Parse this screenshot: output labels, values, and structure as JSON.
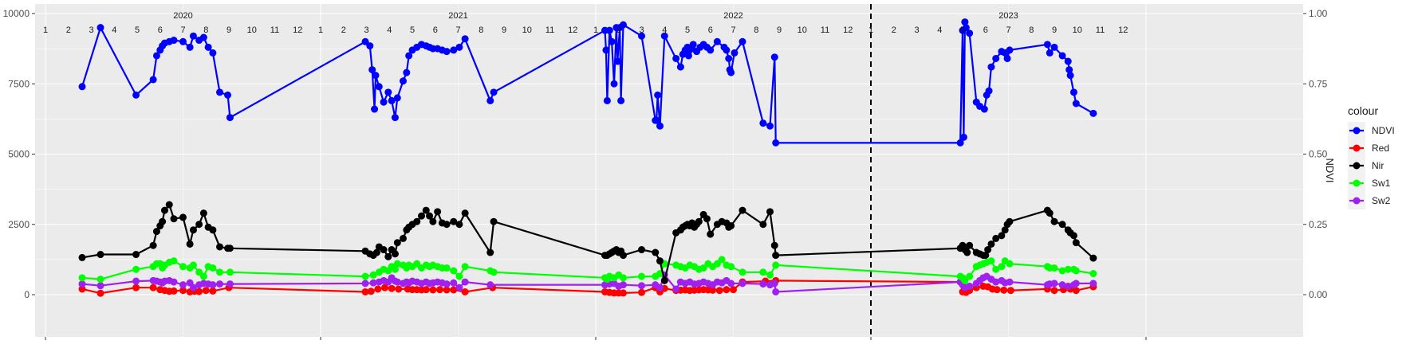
{
  "chart_data": {
    "type": "line",
    "x_start_year": 2020,
    "xlim": [
      0,
      48
    ],
    "ylim_left": [
      0,
      10000
    ],
    "ylim_right": [
      0,
      1
    ],
    "yticks_left": [
      0,
      2500,
      5000,
      7500,
      10000
    ],
    "yticks_right": [
      "0.00",
      "0.25",
      "0.50",
      "0.75",
      "1.00"
    ],
    "ylabel_right": "NDVI",
    "year_labels": [
      "2020",
      "2021",
      "2022",
      "2023"
    ],
    "month_labels": [
      "1",
      "2",
      "3",
      "4",
      "5",
      "6",
      "7",
      "8",
      "9",
      "10",
      "11",
      "12"
    ],
    "vline_x": 36,
    "grid": true,
    "legend_position": "right",
    "legend_title": "colour",
    "series": [
      {
        "name": "NDVI",
        "color": "#0000ff",
        "x": [
          1.6,
          2.4,
          3.95,
          4.7,
          4.85,
          5.0,
          5.1,
          5.2,
          5.4,
          5.6,
          6.0,
          6.3,
          6.45,
          6.7,
          6.9,
          7.1,
          7.3,
          7.6,
          7.95,
          8.05,
          13.95,
          14.15,
          14.25,
          14.35,
          14.4,
          14.55,
          14.75,
          14.95,
          15.1,
          15.25,
          15.35,
          15.6,
          15.75,
          15.85,
          16.0,
          16.2,
          16.4,
          16.6,
          16.75,
          16.9,
          17.1,
          17.3,
          17.5,
          17.8,
          18.05,
          18.3,
          19.4,
          19.55,
          24.4,
          24.45,
          24.5,
          24.6,
          24.7,
          24.8,
          24.9,
          24.95,
          25.05,
          25.1,
          25.2,
          26.0,
          26.6,
          26.65,
          26.7,
          26.8,
          27.0,
          27.5,
          27.7,
          27.8,
          27.9,
          28.0,
          28.05,
          28.1,
          28.15,
          28.25,
          28.4,
          28.55,
          28.7,
          28.85,
          29.0,
          29.3,
          29.6,
          29.7,
          29.8,
          29.85,
          29.9,
          30.05,
          30.4,
          31.3,
          31.6,
          31.8,
          31.85,
          39.9,
          40.0,
          40.05,
          40.1,
          40.15,
          40.3,
          40.6,
          40.75,
          40.95,
          41.05,
          41.15,
          41.25,
          41.45,
          41.7,
          41.85,
          41.95,
          42.05,
          43.7,
          43.8,
          44.0,
          44.35,
          44.6,
          44.65,
          44.7,
          44.85,
          44.95,
          45.7
        ],
        "y": [
          0.74,
          0.95,
          0.71,
          0.765,
          0.85,
          0.87,
          0.885,
          0.895,
          0.9,
          0.905,
          0.9,
          0.88,
          0.92,
          0.905,
          0.915,
          0.88,
          0.86,
          0.72,
          0.71,
          0.63,
          0.9,
          0.885,
          0.8,
          0.66,
          0.78,
          0.74,
          0.685,
          0.72,
          0.69,
          0.63,
          0.7,
          0.76,
          0.79,
          0.85,
          0.87,
          0.88,
          0.89,
          0.885,
          0.88,
          0.875,
          0.875,
          0.87,
          0.865,
          0.87,
          0.88,
          0.91,
          0.69,
          0.72,
          0.94,
          0.87,
          0.69,
          0.94,
          0.9,
          0.75,
          0.95,
          0.83,
          0.95,
          0.69,
          0.96,
          0.92,
          0.62,
          0.62,
          0.71,
          0.6,
          0.92,
          0.84,
          0.81,
          0.855,
          0.87,
          0.88,
          0.85,
          0.87,
          0.875,
          0.89,
          0.865,
          0.88,
          0.89,
          0.88,
          0.87,
          0.9,
          0.88,
          0.87,
          0.84,
          0.8,
          0.79,
          0.86,
          0.9,
          0.61,
          0.6,
          0.845,
          0.54,
          0.54,
          0.94,
          0.56,
          0.97,
          0.95,
          0.93,
          0.685,
          0.67,
          0.66,
          0.71,
          0.725,
          0.81,
          0.84,
          0.865,
          0.86,
          0.84,
          0.87,
          0.89,
          0.86,
          0.88,
          0.85,
          0.83,
          0.8,
          0.78,
          0.72,
          0.68,
          0.645
        ]
      },
      {
        "name": "Red",
        "color": "#ff0000",
        "x": [
          1.6,
          2.4,
          3.95,
          4.7,
          5.0,
          5.2,
          5.4,
          5.6,
          6.0,
          6.3,
          6.5,
          6.7,
          7.0,
          7.3,
          8.0,
          13.95,
          14.2,
          14.5,
          14.8,
          15.1,
          15.4,
          15.8,
          16.0,
          16.2,
          16.4,
          16.6,
          16.9,
          17.2,
          17.5,
          17.8,
          18.3,
          19.5,
          24.4,
          24.6,
          24.8,
          25.0,
          25.2,
          26.0,
          26.6,
          26.8,
          27.0,
          27.5,
          27.7,
          27.9,
          28.1,
          28.3,
          28.5,
          28.7,
          28.9,
          29.1,
          29.4,
          29.7,
          30.0,
          30.4,
          31.4,
          31.85,
          39.9,
          40.0,
          40.15,
          40.3,
          40.6,
          40.9,
          41.1,
          41.3,
          41.5,
          41.8,
          42.1,
          43.7,
          44.0,
          44.4,
          44.7,
          44.95,
          45.7
        ],
        "y": [
          200,
          50,
          250,
          250,
          180,
          150,
          120,
          130,
          150,
          100,
          120,
          110,
          150,
          130,
          250,
          100,
          120,
          200,
          250,
          220,
          200,
          200,
          180,
          180,
          170,
          180,
          170,
          180,
          170,
          170,
          100,
          250,
          100,
          80,
          60,
          60,
          60,
          80,
          250,
          100,
          220,
          150,
          160,
          170,
          150,
          160,
          170,
          180,
          170,
          160,
          150,
          180,
          180,
          450,
          480,
          500,
          450,
          100,
          80,
          150,
          250,
          300,
          280,
          200,
          180,
          160,
          150,
          200,
          150,
          180,
          200,
          150,
          280
        ]
      },
      {
        "name": "Nir",
        "color": "#000000",
        "x": [
          1.6,
          2.4,
          3.95,
          4.7,
          4.85,
          5.0,
          5.1,
          5.2,
          5.4,
          5.6,
          6.0,
          6.3,
          6.45,
          6.7,
          6.9,
          7.1,
          7.3,
          7.6,
          7.95,
          8.05,
          13.95,
          14.15,
          14.3,
          14.45,
          14.55,
          14.75,
          14.95,
          15.1,
          15.25,
          15.35,
          15.6,
          15.75,
          15.85,
          16.0,
          16.2,
          16.4,
          16.6,
          16.75,
          16.9,
          17.1,
          17.3,
          17.5,
          17.8,
          18.05,
          18.3,
          19.4,
          19.55,
          24.4,
          24.5,
          24.6,
          24.7,
          24.8,
          24.9,
          25.0,
          25.1,
          25.2,
          26.0,
          26.6,
          26.8,
          27.0,
          27.5,
          27.7,
          27.8,
          27.9,
          28.0,
          28.1,
          28.2,
          28.3,
          28.4,
          28.5,
          28.7,
          28.85,
          29.0,
          29.3,
          29.5,
          29.7,
          29.8,
          29.9,
          30.4,
          31.3,
          31.6,
          31.8,
          31.85,
          39.9,
          40.0,
          40.1,
          40.2,
          40.3,
          40.6,
          40.75,
          40.9,
          41.0,
          41.1,
          41.25,
          41.45,
          41.7,
          41.85,
          41.95,
          42.05,
          43.7,
          43.8,
          44.0,
          44.35,
          44.6,
          44.7,
          44.85,
          44.95,
          45.7
        ],
        "y": [
          1320,
          1430,
          1430,
          1750,
          2250,
          2450,
          2600,
          3000,
          3200,
          2700,
          2750,
          1800,
          2300,
          2500,
          2900,
          2400,
          2300,
          1700,
          1650,
          1650,
          1550,
          1450,
          1400,
          1500,
          1700,
          1600,
          1350,
          1600,
          1450,
          1850,
          2000,
          2300,
          2400,
          2500,
          2600,
          2800,
          3000,
          2800,
          2600,
          2950,
          2550,
          2500,
          2600,
          2500,
          2900,
          1500,
          2600,
          1400,
          1400,
          1450,
          1500,
          1550,
          1600,
          1500,
          1550,
          1400,
          1600,
          1500,
          1200,
          500,
          2200,
          2300,
          2400,
          2450,
          2500,
          2450,
          2550,
          2400,
          2500,
          2600,
          2850,
          2700,
          2150,
          2500,
          2600,
          2550,
          2400,
          2450,
          3000,
          2500,
          2950,
          1750,
          1400,
          1650,
          1750,
          1600,
          1500,
          1750,
          1500,
          1450,
          1400,
          1400,
          1600,
          1800,
          2000,
          2100,
          2300,
          2500,
          2600,
          3000,
          2900,
          2600,
          2500,
          2300,
          2200,
          2100,
          1850,
          1300
        ]
      },
      {
        "name": "Sw1",
        "color": "#00ff00",
        "x": [
          1.6,
          2.4,
          3.95,
          4.7,
          4.85,
          5.0,
          5.1,
          5.2,
          5.4,
          5.6,
          6.0,
          6.3,
          6.45,
          6.7,
          6.9,
          7.1,
          7.3,
          7.6,
          8.05,
          13.95,
          14.3,
          14.55,
          14.75,
          14.95,
          15.1,
          15.25,
          15.35,
          15.6,
          15.75,
          15.85,
          16.0,
          16.2,
          16.4,
          16.6,
          16.75,
          16.9,
          17.1,
          17.3,
          17.5,
          17.8,
          18.05,
          18.3,
          19.4,
          19.55,
          24.4,
          24.5,
          24.6,
          24.8,
          25.0,
          25.2,
          26.0,
          26.6,
          26.8,
          27.0,
          27.5,
          27.7,
          27.9,
          28.1,
          28.3,
          28.5,
          28.7,
          28.9,
          29.1,
          29.3,
          29.5,
          29.7,
          29.9,
          30.4,
          31.3,
          31.6,
          31.85,
          39.9,
          40.0,
          40.1,
          40.3,
          40.6,
          40.75,
          40.9,
          41.05,
          41.25,
          41.45,
          41.7,
          41.85,
          42.05,
          43.7,
          43.8,
          44.0,
          44.35,
          44.6,
          44.85,
          44.95,
          45.7
        ],
        "y": [
          600,
          550,
          900,
          1000,
          1100,
          1100,
          950,
          1050,
          1150,
          1200,
          1000,
          950,
          1050,
          800,
          650,
          1000,
          950,
          800,
          800,
          650,
          700,
          800,
          900,
          850,
          1000,
          900,
          1100,
          1050,
          950,
          1050,
          1000,
          1100,
          950,
          1050,
          1000,
          1050,
          1000,
          950,
          950,
          850,
          650,
          1000,
          850,
          800,
          600,
          550,
          650,
          600,
          700,
          600,
          650,
          650,
          750,
          1100,
          1050,
          1000,
          950,
          1050,
          1000,
          900,
          950,
          1100,
          1000,
          1100,
          1250,
          1050,
          1000,
          800,
          800,
          700,
          1050,
          650,
          600,
          500,
          650,
          1000,
          1050,
          1100,
          1150,
          1200,
          900,
          1000,
          1200,
          1100,
          1000,
          950,
          950,
          850,
          900,
          900,
          850,
          750
        ]
      },
      {
        "name": "Sw2",
        "color": "#a020f0",
        "x": [
          1.6,
          2.4,
          3.95,
          4.7,
          4.85,
          5.0,
          5.1,
          5.2,
          5.4,
          5.6,
          6.0,
          6.3,
          6.45,
          6.7,
          6.9,
          7.1,
          7.3,
          7.6,
          8.05,
          13.95,
          14.3,
          14.55,
          14.75,
          14.95,
          15.1,
          15.25,
          15.35,
          15.6,
          15.75,
          15.85,
          16.0,
          16.2,
          16.4,
          16.6,
          16.75,
          16.9,
          17.1,
          17.3,
          17.5,
          17.8,
          18.05,
          18.3,
          19.4,
          24.4,
          24.5,
          24.6,
          24.8,
          25.0,
          25.2,
          26.0,
          26.6,
          26.8,
          27.0,
          27.5,
          27.7,
          27.9,
          28.1,
          28.3,
          28.5,
          28.7,
          28.9,
          29.1,
          29.3,
          29.5,
          29.7,
          29.9,
          30.4,
          31.3,
          31.6,
          31.8,
          31.85,
          39.9,
          40.0,
          40.1,
          40.3,
          40.6,
          40.75,
          40.9,
          41.05,
          41.25,
          41.45,
          41.7,
          41.85,
          42.05,
          43.7,
          43.8,
          44.0,
          44.35,
          44.6,
          44.85,
          44.95,
          45.7
        ],
        "y": [
          380,
          320,
          480,
          500,
          480,
          450,
          420,
          480,
          500,
          450,
          350,
          420,
          250,
          350,
          400,
          380,
          350,
          380,
          380,
          400,
          420,
          450,
          500,
          450,
          600,
          480,
          450,
          400,
          450,
          420,
          480,
          450,
          400,
          450,
          400,
          420,
          450,
          420,
          380,
          420,
          250,
          450,
          350,
          350,
          420,
          380,
          400,
          300,
          350,
          320,
          350,
          250,
          700,
          200,
          450,
          400,
          450,
          380,
          400,
          450,
          400,
          350,
          450,
          420,
          500,
          400,
          400,
          380,
          350,
          400,
          100,
          450,
          350,
          250,
          300,
          400,
          500,
          600,
          650,
          550,
          450,
          500,
          420,
          450,
          350,
          380,
          400,
          350,
          300,
          350,
          400,
          400
        ]
      }
    ]
  }
}
